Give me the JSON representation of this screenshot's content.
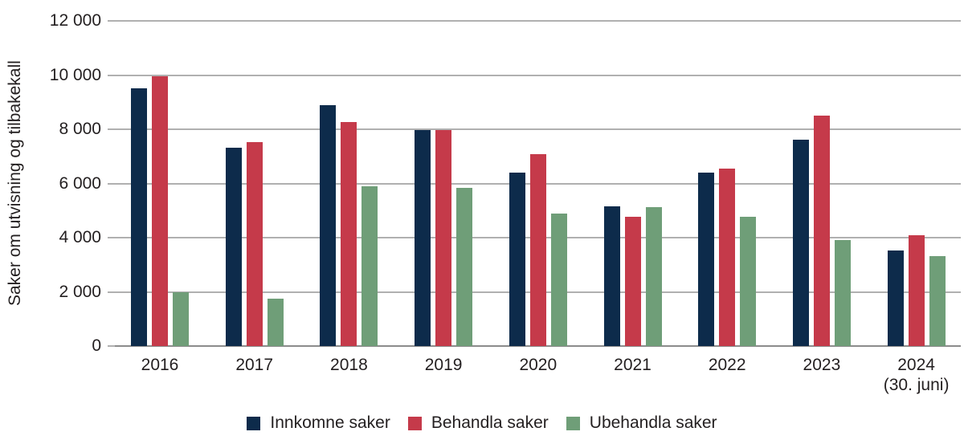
{
  "chart_data": {
    "type": "bar",
    "title": "",
    "ylabel": "Saker om utvisning og tilbakekall",
    "xlabel": "",
    "ylim": [
      0,
      12000
    ],
    "ytick_step": 2000,
    "ytick_labels": [
      "0",
      "2 000",
      "4 000",
      "6 000",
      "8 000",
      "10 000",
      "12 000"
    ],
    "grid": true,
    "legend_position": "bottom",
    "categories": [
      {
        "label": "2016",
        "sublabel": ""
      },
      {
        "label": "2017",
        "sublabel": ""
      },
      {
        "label": "2018",
        "sublabel": ""
      },
      {
        "label": "2019",
        "sublabel": ""
      },
      {
        "label": "2020",
        "sublabel": ""
      },
      {
        "label": "2021",
        "sublabel": ""
      },
      {
        "label": "2022",
        "sublabel": ""
      },
      {
        "label": "2023",
        "sublabel": ""
      },
      {
        "label": "2024",
        "sublabel": "(30. juni)"
      }
    ],
    "series": [
      {
        "name": "Innkomne saker",
        "color": "#0d2b4b",
        "values": [
          9500,
          7330,
          8880,
          7960,
          6400,
          5170,
          6400,
          7620,
          3520
        ]
      },
      {
        "name": "Behandla saker",
        "color": "#c53a4a",
        "values": [
          9950,
          7520,
          8260,
          7960,
          7080,
          4760,
          6550,
          8490,
          4090
        ]
      },
      {
        "name": "Ubehandla saker",
        "color": "#6f9e78",
        "values": [
          2000,
          1740,
          5900,
          5850,
          4900,
          5140,
          4780,
          3910,
          3310
        ]
      }
    ],
    "axis_colors": {
      "grid": "#b0b0b0",
      "axis": "#8c8c8c",
      "text": "#231f20"
    }
  }
}
